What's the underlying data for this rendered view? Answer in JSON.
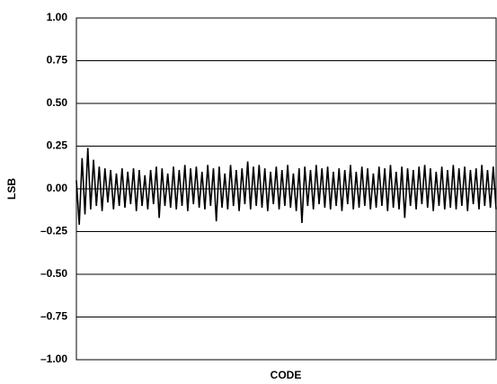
{
  "chart_data": {
    "type": "line",
    "x_label": "CODE",
    "y_label": "LSB",
    "color": "#000000",
    "grid": true,
    "ylim": [
      -1,
      1
    ],
    "yticks": [
      {
        "value": -1,
        "label": "–1.00"
      },
      {
        "value": -0.75,
        "label": "–0.75"
      },
      {
        "value": -0.5,
        "label": "–0.50"
      },
      {
        "value": -0.25,
        "label": "–0.25"
      },
      {
        "value": 0,
        "label": "0.00"
      },
      {
        "value": 0.25,
        "label": "0.25"
      },
      {
        "value": 0.5,
        "label": "0.50"
      },
      {
        "value": 0.75,
        "label": "0.75"
      },
      {
        "value": 1,
        "label": "1.00"
      }
    ],
    "values": [
      0.05,
      -0.21,
      0.18,
      -0.15,
      0.24,
      -0.12,
      0.17,
      -0.1,
      0.13,
      -0.13,
      0.12,
      -0.08,
      0.11,
      -0.12,
      0.09,
      -0.1,
      0.12,
      -0.11,
      0.1,
      -0.09,
      0.12,
      -0.13,
      0.11,
      -0.1,
      0.08,
      -0.12,
      0.11,
      -0.09,
      0.13,
      -0.17,
      0.12,
      -0.1,
      0.09,
      -0.11,
      0.13,
      -0.12,
      0.11,
      -0.1,
      0.14,
      -0.13,
      0.12,
      -0.09,
      0.13,
      -0.11,
      0.1,
      -0.12,
      0.14,
      -0.1,
      0.12,
      -0.19,
      0.13,
      -0.11,
      0.09,
      -0.12,
      0.14,
      -0.1,
      0.11,
      -0.13,
      0.12,
      -0.09,
      0.16,
      -0.12,
      0.13,
      -0.1,
      0.14,
      -0.11,
      0.12,
      -0.13,
      0.1,
      -0.09,
      0.13,
      -0.12,
      0.11,
      -0.1,
      0.14,
      -0.11,
      0.09,
      -0.13,
      0.12,
      -0.2,
      0.13,
      -0.1,
      0.11,
      -0.12,
      0.14,
      -0.09,
      0.12,
      -0.11,
      0.13,
      -0.12,
      0.1,
      -0.1,
      0.12,
      -0.13,
      0.11,
      -0.09,
      0.14,
      -0.12,
      0.1,
      -0.11,
      0.13,
      -0.1,
      0.12,
      -0.12,
      0.09,
      -0.11,
      0.13,
      -0.1,
      0.12,
      -0.13,
      0.14,
      -0.11,
      0.1,
      -0.12,
      0.13,
      -0.17,
      0.12,
      -0.1,
      0.11,
      -0.12,
      0.13,
      -0.09,
      0.14,
      -0.11,
      0.12,
      -0.13,
      0.1,
      -0.1,
      0.13,
      -0.12,
      0.11,
      -0.11,
      0.14,
      -0.12,
      0.12,
      -0.1,
      0.13,
      -0.13,
      0.11,
      -0.09,
      0.12,
      -0.12,
      0.14,
      -0.1,
      0.11,
      -0.11,
      0.13,
      -0.12
    ]
  }
}
